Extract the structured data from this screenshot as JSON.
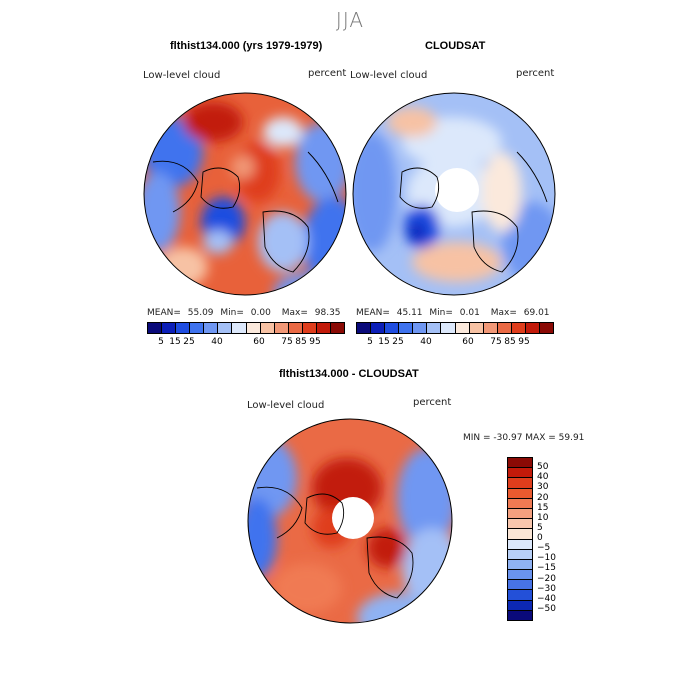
{
  "season": "JJA",
  "panel_left": {
    "title": "flthist134.000 (yrs 1979-1979)",
    "field_label": "Low-level cloud",
    "units": "percent",
    "stats": {
      "mean_label": "MEAN=",
      "mean": "55.09",
      "min_label": "Min=",
      "min": "0.00",
      "max_label": "Max=",
      "max": "98.35"
    }
  },
  "panel_right": {
    "title": "CLOUDSAT",
    "field_label": "Low-level cloud",
    "units": "percent",
    "stats": {
      "mean_label": "MEAN=",
      "mean": "45.11",
      "min_label": "Min=",
      "min": "0.01",
      "max_label": "Max=",
      "max": "69.01"
    }
  },
  "panel_diff": {
    "title": "flthist134.000 - CLOUDSAT",
    "field_label": "Low-level cloud",
    "units": "percent",
    "minmax": "MIN = -30.97 MAX =  59.91"
  },
  "colorbar_abs": {
    "colors": [
      "#0a0a7a",
      "#0c1fb8",
      "#1f4de0",
      "#3f73ee",
      "#6f97f2",
      "#a4c0f6",
      "#dce8fb",
      "#fbe9dc",
      "#f7c2a4",
      "#f19877",
      "#ea6a45",
      "#df3d1c",
      "#c21a0a",
      "#8a0a05"
    ],
    "ticks": [
      "5",
      "15",
      "25",
      "40",
      "60",
      "75",
      "85",
      "95"
    ]
  },
  "colorbar_diff": {
    "colors": [
      "#8a0a05",
      "#c21a0a",
      "#df3d1c",
      "#ea5a2f",
      "#f07a53",
      "#f4a07f",
      "#f8c6ad",
      "#fbe6d6",
      "#dce8fb",
      "#b8d0f7",
      "#8fb2f3",
      "#6a93ee",
      "#4773e6",
      "#2350d8",
      "#0c28b4",
      "#0a0a7a"
    ],
    "ticks": [
      "50",
      "40",
      "30",
      "20",
      "15",
      "10",
      "5",
      "0",
      "−5",
      "−10",
      "−15",
      "−20",
      "−30",
      "−40",
      "−50"
    ]
  }
}
